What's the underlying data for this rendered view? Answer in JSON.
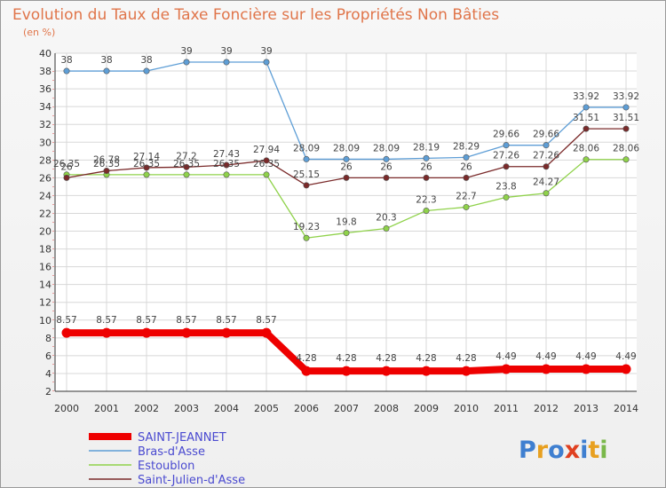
{
  "chart_data": {
    "type": "line",
    "title": "Evolution du Taux de Taxe Foncière sur les Propriétés Non Bâties",
    "subtitle": "(en %)",
    "xlabel": "",
    "ylabel": "",
    "ylim": [
      2,
      40
    ],
    "yticks": [
      2,
      4,
      6,
      8,
      10,
      12,
      14,
      16,
      18,
      20,
      22,
      24,
      26,
      28,
      30,
      32,
      34,
      36,
      38,
      40
    ],
    "x": [
      "2000",
      "2001",
      "2002",
      "2003",
      "2004",
      "2005",
      "2006",
      "2007",
      "2008",
      "2009",
      "2010",
      "2011",
      "2012",
      "2013",
      "2014"
    ],
    "grid": true,
    "legend": "bottom-left",
    "series": [
      {
        "name": "Bras-d'Asse",
        "color": "#5e9ed6",
        "values": [
          38,
          38,
          38,
          39,
          39,
          39,
          28.09,
          28.09,
          28.09,
          28.19,
          28.29,
          29.66,
          29.66,
          33.92,
          33.92
        ],
        "labels": [
          "38",
          "38",
          "38",
          "39",
          "39",
          "39",
          "28.09",
          "28.09",
          "28.09",
          "28.19",
          "28.29",
          "29.66",
          "29.66",
          "33.92",
          "33.92"
        ]
      },
      {
        "name": "Estoublon",
        "color": "#8fd24a",
        "values": [
          26.35,
          26.35,
          26.35,
          26.35,
          26.35,
          26.35,
          19.23,
          19.8,
          20.3,
          22.3,
          22.7,
          23.8,
          24.27,
          28.06,
          28.06
        ],
        "labels": [
          "26.35",
          "26.35",
          "26.35",
          "26.35",
          "26.35",
          "26.35",
          "19.23",
          "19.8",
          "20.3",
          "22.3",
          "22.7",
          "23.8",
          "24.27",
          "28.06",
          "28.06"
        ]
      },
      {
        "name": "Saint-Julien-d'Asse",
        "color": "#7a2a2a",
        "values": [
          26,
          26.78,
          27.14,
          27.2,
          27.43,
          27.94,
          25.15,
          26,
          26,
          26,
          26,
          27.26,
          27.26,
          31.51,
          31.51
        ],
        "labels": [
          "26",
          "26.78",
          "27.14",
          "27.2",
          "27.43",
          "27.94",
          "25.15",
          "26",
          "26",
          "26",
          "26",
          "27.26",
          "27.26",
          "31.51",
          "31.51"
        ]
      },
      {
        "name": "SAINT-JEANNET",
        "color": "#ee0000",
        "values": [
          8.57,
          8.57,
          8.57,
          8.57,
          8.57,
          8.57,
          4.28,
          4.28,
          4.28,
          4.28,
          4.28,
          4.49,
          4.49,
          4.49,
          4.49
        ],
        "labels": [
          "8.57",
          "8.57",
          "8.57",
          "8.57",
          "8.57",
          "8.57",
          "4.28",
          "4.28",
          "4.28",
          "4.28",
          "4.28",
          "4.49",
          "4.49",
          "4.49",
          "4.49"
        ]
      }
    ]
  },
  "legend_order": [
    "SAINT-JEANNET",
    "Bras-d'Asse",
    "Estoublon",
    "Saint-Julien-d'Asse"
  ],
  "logo": {
    "text": "Proxiti",
    "letters": [
      "P",
      "r",
      "o",
      "x",
      "i",
      "t",
      "i"
    ],
    "colors": [
      "#3f7fd0",
      "#e8a020",
      "#3f7fd0",
      "#e04020",
      "#3f7fd0",
      "#e8a020",
      "#7ab84a"
    ]
  }
}
